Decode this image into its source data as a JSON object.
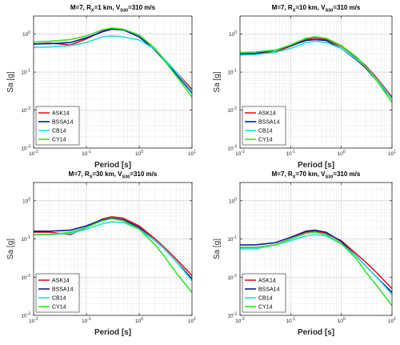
{
  "chart_data": [
    {
      "type": "line",
      "title_parts": [
        "M=7, R",
        "X",
        "=1 km, V",
        "S30",
        "=310 m/s"
      ],
      "xlabel": "Period [s]",
      "ylabel": "Sa [g]",
      "xscale": "log",
      "yscale": "log",
      "xlim": [
        0.01,
        10
      ],
      "ylim": [
        0.001,
        3
      ],
      "x_ticks": [
        [
          "10",
          "-2"
        ],
        [
          "10",
          "-1"
        ],
        [
          "10",
          "0"
        ],
        [
          "10",
          "1"
        ]
      ],
      "y_ticks": [
        [
          "10",
          "-3"
        ],
        [
          "10",
          "-2"
        ],
        [
          "10",
          "-1"
        ],
        [
          "10",
          "0"
        ]
      ],
      "grid": true,
      "legend_position": "bottom-left",
      "series": [
        {
          "name": "ASK14",
          "color": "#e8141c",
          "points": [
            [
              0.01,
              0.55
            ],
            [
              0.02,
              0.58
            ],
            [
              0.05,
              0.52
            ],
            [
              0.1,
              0.75
            ],
            [
              0.2,
              1.2
            ],
            [
              0.3,
              1.4
            ],
            [
              0.5,
              1.3
            ],
            [
              1,
              0.85
            ],
            [
              2,
              0.4
            ],
            [
              3,
              0.22
            ],
            [
              5,
              0.1
            ],
            [
              10,
              0.035
            ]
          ]
        },
        {
          "name": "BSSA14",
          "color": "#0b1c9c",
          "points": [
            [
              0.01,
              0.55
            ],
            [
              0.02,
              0.56
            ],
            [
              0.05,
              0.6
            ],
            [
              0.1,
              0.8
            ],
            [
              0.2,
              1.15
            ],
            [
              0.3,
              1.35
            ],
            [
              0.5,
              1.3
            ],
            [
              1,
              0.85
            ],
            [
              2,
              0.38
            ],
            [
              3,
              0.2
            ],
            [
              5,
              0.09
            ],
            [
              10,
              0.028
            ]
          ]
        },
        {
          "name": "CB14",
          "color": "#22e0e6",
          "points": [
            [
              0.01,
              0.45
            ],
            [
              0.02,
              0.46
            ],
            [
              0.05,
              0.5
            ],
            [
              0.1,
              0.6
            ],
            [
              0.2,
              0.85
            ],
            [
              0.3,
              0.9
            ],
            [
              0.5,
              0.85
            ],
            [
              1,
              0.7
            ],
            [
              2,
              0.4
            ],
            [
              3,
              0.22
            ],
            [
              5,
              0.1
            ],
            [
              10,
              0.03
            ]
          ]
        },
        {
          "name": "CY14",
          "color": "#2de823",
          "points": [
            [
              0.01,
              0.62
            ],
            [
              0.02,
              0.65
            ],
            [
              0.05,
              0.72
            ],
            [
              0.1,
              0.9
            ],
            [
              0.2,
              1.3
            ],
            [
              0.3,
              1.45
            ],
            [
              0.5,
              1.35
            ],
            [
              1,
              0.95
            ],
            [
              2,
              0.42
            ],
            [
              3,
              0.2
            ],
            [
              5,
              0.08
            ],
            [
              10,
              0.022
            ]
          ]
        }
      ]
    },
    {
      "type": "line",
      "title_parts": [
        "M=7, R",
        "X",
        "=10 km, V",
        "S30",
        "=310 m/s"
      ],
      "xlabel": "Period [s]",
      "ylabel": "Sa [g]",
      "xscale": "log",
      "yscale": "log",
      "xlim": [
        0.01,
        10
      ],
      "ylim": [
        0.001,
        3
      ],
      "x_ticks": [
        [
          "10",
          "-2"
        ],
        [
          "10",
          "-1"
        ],
        [
          "10",
          "0"
        ],
        [
          "10",
          "1"
        ]
      ],
      "y_ticks": [
        [
          "10",
          "-3"
        ],
        [
          "10",
          "-2"
        ],
        [
          "10",
          "-1"
        ],
        [
          "10",
          "0"
        ]
      ],
      "grid": true,
      "legend_position": "bottom-left",
      "series": [
        {
          "name": "ASK14",
          "color": "#e8141c",
          "points": [
            [
              0.01,
              0.3
            ],
            [
              0.02,
              0.31
            ],
            [
              0.05,
              0.34
            ],
            [
              0.1,
              0.48
            ],
            [
              0.2,
              0.72
            ],
            [
              0.3,
              0.8
            ],
            [
              0.5,
              0.72
            ],
            [
              1,
              0.48
            ],
            [
              2,
              0.24
            ],
            [
              3,
              0.15
            ],
            [
              5,
              0.07
            ],
            [
              10,
              0.022
            ]
          ]
        },
        {
          "name": "BSSA14",
          "color": "#0b1c9c",
          "points": [
            [
              0.01,
              0.3
            ],
            [
              0.02,
              0.31
            ],
            [
              0.05,
              0.38
            ],
            [
              0.1,
              0.5
            ],
            [
              0.2,
              0.68
            ],
            [
              0.3,
              0.72
            ],
            [
              0.5,
              0.68
            ],
            [
              1,
              0.42
            ],
            [
              2,
              0.21
            ],
            [
              3,
              0.13
            ],
            [
              5,
              0.06
            ],
            [
              10,
              0.02
            ]
          ]
        },
        {
          "name": "CB14",
          "color": "#22e0e6",
          "points": [
            [
              0.01,
              0.28
            ],
            [
              0.02,
              0.29
            ],
            [
              0.05,
              0.33
            ],
            [
              0.1,
              0.42
            ],
            [
              0.2,
              0.6
            ],
            [
              0.3,
              0.65
            ],
            [
              0.5,
              0.6
            ],
            [
              1,
              0.42
            ],
            [
              2,
              0.22
            ],
            [
              3,
              0.14
            ],
            [
              5,
              0.065
            ],
            [
              10,
              0.02
            ]
          ]
        },
        {
          "name": "CY14",
          "color": "#2de823",
          "points": [
            [
              0.01,
              0.33
            ],
            [
              0.02,
              0.34
            ],
            [
              0.05,
              0.38
            ],
            [
              0.1,
              0.52
            ],
            [
              0.2,
              0.78
            ],
            [
              0.3,
              0.85
            ],
            [
              0.5,
              0.78
            ],
            [
              1,
              0.5
            ],
            [
              2,
              0.25
            ],
            [
              3,
              0.14
            ],
            [
              5,
              0.06
            ],
            [
              10,
              0.016
            ]
          ]
        }
      ]
    },
    {
      "type": "line",
      "title_parts": [
        "M=7, R",
        "X",
        "=30 km, V",
        "S30",
        "=310 m/s"
      ],
      "xlabel": "Period [s]",
      "ylabel": "Sa [g]",
      "xscale": "log",
      "yscale": "log",
      "xlim": [
        0.01,
        10
      ],
      "ylim": [
        0.001,
        3
      ],
      "x_ticks": [
        [
          "10",
          "-2"
        ],
        [
          "10",
          "-1"
        ],
        [
          "10",
          "0"
        ],
        [
          "10",
          "1"
        ]
      ],
      "y_ticks": [
        [
          "10",
          "-3"
        ],
        [
          "10",
          "-2"
        ],
        [
          "10",
          "-1"
        ],
        [
          "10",
          "0"
        ]
      ],
      "grid": true,
      "legend_position": "bottom-left",
      "series": [
        {
          "name": "ASK14",
          "color": "#e8141c",
          "points": [
            [
              0.01,
              0.15
            ],
            [
              0.02,
              0.15
            ],
            [
              0.05,
              0.13
            ],
            [
              0.1,
              0.2
            ],
            [
              0.2,
              0.33
            ],
            [
              0.3,
              0.38
            ],
            [
              0.5,
              0.35
            ],
            [
              1,
              0.22
            ],
            [
              2,
              0.1
            ],
            [
              3,
              0.06
            ],
            [
              5,
              0.03
            ],
            [
              10,
              0.011
            ]
          ]
        },
        {
          "name": "BSSA14",
          "color": "#0b1c9c",
          "points": [
            [
              0.01,
              0.16
            ],
            [
              0.02,
              0.16
            ],
            [
              0.05,
              0.17
            ],
            [
              0.1,
              0.22
            ],
            [
              0.2,
              0.32
            ],
            [
              0.3,
              0.35
            ],
            [
              0.5,
              0.32
            ],
            [
              1,
              0.2
            ],
            [
              2,
              0.09
            ],
            [
              3,
              0.055
            ],
            [
              5,
              0.026
            ],
            [
              10,
              0.009
            ]
          ]
        },
        {
          "name": "CB14",
          "color": "#22e0e6",
          "points": [
            [
              0.01,
              0.13
            ],
            [
              0.02,
              0.13
            ],
            [
              0.05,
              0.14
            ],
            [
              0.1,
              0.18
            ],
            [
              0.2,
              0.25
            ],
            [
              0.3,
              0.28
            ],
            [
              0.5,
              0.27
            ],
            [
              1,
              0.18
            ],
            [
              2,
              0.09
            ],
            [
              3,
              0.055
            ],
            [
              5,
              0.026
            ],
            [
              10,
              0.008
            ]
          ]
        },
        {
          "name": "CY14",
          "color": "#2de823",
          "points": [
            [
              0.01,
              0.13
            ],
            [
              0.02,
              0.13
            ],
            [
              0.05,
              0.15
            ],
            [
              0.1,
              0.2
            ],
            [
              0.2,
              0.3
            ],
            [
              0.3,
              0.34
            ],
            [
              0.5,
              0.3
            ],
            [
              1,
              0.18
            ],
            [
              2,
              0.07
            ],
            [
              3,
              0.035
            ],
            [
              5,
              0.013
            ],
            [
              10,
              0.004
            ]
          ]
        }
      ]
    },
    {
      "type": "line",
      "title_parts": [
        "M=7, R",
        "X",
        "=70 km, V",
        "S30",
        "=310 m/s"
      ],
      "xlabel": "Period [s]",
      "ylabel": "Sa [g]",
      "xscale": "log",
      "yscale": "log",
      "xlim": [
        0.01,
        10
      ],
      "ylim": [
        0.001,
        3
      ],
      "x_ticks": [
        [
          "10",
          "-2"
        ],
        [
          "10",
          "-1"
        ],
        [
          "10",
          "0"
        ],
        [
          "10",
          "1"
        ]
      ],
      "y_ticks": [
        [
          "10",
          "-3"
        ],
        [
          "10",
          "-2"
        ],
        [
          "10",
          "-1"
        ],
        [
          "10",
          "0"
        ]
      ],
      "grid": true,
      "legend_position": "bottom-left",
      "series": [
        {
          "name": "ASK14",
          "color": "#e8141c",
          "points": [
            [
              0.01,
              0.06
            ],
            [
              0.02,
              0.06
            ],
            [
              0.05,
              0.07
            ],
            [
              0.1,
              0.1
            ],
            [
              0.2,
              0.15
            ],
            [
              0.3,
              0.16
            ],
            [
              0.5,
              0.14
            ],
            [
              1,
              0.09
            ],
            [
              2,
              0.04
            ],
            [
              3,
              0.025
            ],
            [
              5,
              0.013
            ],
            [
              10,
              0.005
            ]
          ]
        },
        {
          "name": "BSSA14",
          "color": "#0b1c9c",
          "points": [
            [
              0.01,
              0.07
            ],
            [
              0.02,
              0.07
            ],
            [
              0.05,
              0.08
            ],
            [
              0.1,
              0.11
            ],
            [
              0.2,
              0.16
            ],
            [
              0.3,
              0.17
            ],
            [
              0.5,
              0.15
            ],
            [
              1,
              0.085
            ],
            [
              2,
              0.035
            ],
            [
              3,
              0.02
            ],
            [
              5,
              0.01
            ],
            [
              10,
              0.004
            ]
          ]
        },
        {
          "name": "CB14",
          "color": "#22e0e6",
          "points": [
            [
              0.01,
              0.055
            ],
            [
              0.02,
              0.055
            ],
            [
              0.05,
              0.07
            ],
            [
              0.1,
              0.09
            ],
            [
              0.2,
              0.12
            ],
            [
              0.3,
              0.13
            ],
            [
              0.5,
              0.12
            ],
            [
              1,
              0.075
            ],
            [
              2,
              0.035
            ],
            [
              3,
              0.02
            ],
            [
              5,
              0.01
            ],
            [
              10,
              0.0035
            ]
          ]
        },
        {
          "name": "CY14",
          "color": "#2de823",
          "points": [
            [
              0.01,
              0.06
            ],
            [
              0.02,
              0.06
            ],
            [
              0.05,
              0.07
            ],
            [
              0.1,
              0.1
            ],
            [
              0.2,
              0.14
            ],
            [
              0.3,
              0.15
            ],
            [
              0.5,
              0.13
            ],
            [
              1,
              0.075
            ],
            [
              2,
              0.03
            ],
            [
              3,
              0.014
            ],
            [
              5,
              0.006
            ],
            [
              10,
              0.0018
            ]
          ]
        }
      ]
    }
  ]
}
